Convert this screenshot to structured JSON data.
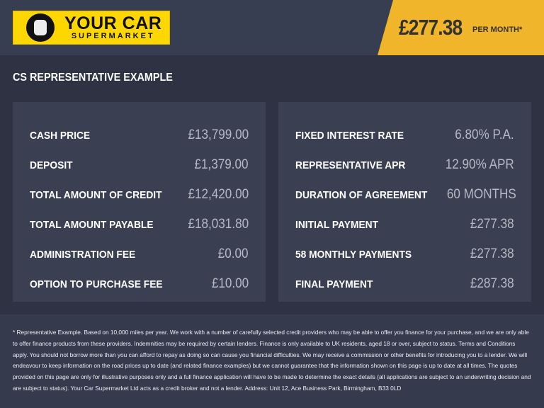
{
  "header": {
    "logo_text": "YOUR CAR SUPERMARKET",
    "logo_line1": "YOUR CAR",
    "logo_line2": "SUPERMARKET",
    "monthly_price": "£277.38",
    "per_month_label": "PER MONTH*",
    "accent_color": "#f0b52a"
  },
  "section_title": "CS REPRESENTATIVE EXAMPLE",
  "left_panel": [
    {
      "label": "CASH PRICE",
      "value": "£13,799.00"
    },
    {
      "label": "DEPOSIT",
      "value": "£1,379.00"
    },
    {
      "label": "TOTAL AMOUNT OF CREDIT",
      "value": "£12,420.00"
    },
    {
      "label": "TOTAL AMOUNT PAYABLE",
      "value": "£18,031.80"
    },
    {
      "label": "ADMINISTRATION FEE",
      "value": "£0.00"
    },
    {
      "label": "OPTION TO PURCHASE FEE",
      "value": "£10.00"
    }
  ],
  "right_panel": [
    {
      "label": "FIXED INTEREST RATE",
      "value": "6.80% P.A."
    },
    {
      "label": "REPRESENTATIVE APR",
      "value": "12.90% APR"
    },
    {
      "label": "DURATION OF AGREEMENT",
      "value": "60 MONTHS"
    },
    {
      "label": "INITIAL PAYMENT",
      "value": "£277.38"
    },
    {
      "label": "58 MONTHLY PAYMENTS",
      "value": "£277.38"
    },
    {
      "label": "FINAL PAYMENT",
      "value": "£287.38"
    }
  ],
  "footer_text": "* Representative Example. Based on 10,000 miles per year. We work with a number of carefully selected credit providers who may be able to offer you finance for your purchase, and we are only able to offer finance products from these providers. Indemnities may be required by certain lenders. Finance is only available to UK residents, aged 18 or over, subject to status. Terms and Conditions apply. You should not borrow more than you can afford to repay as doing so can cause you financial difficulties. We may receive a commission or other benefits for introducing you to a lender. We will endeavour to keep information on the road prices up to date (and related finance examples) but we cannot guarantee that the information shown on this page is up to date at all times. The quotes provided on this page are only for illustrative purposes only and a full finance application will have to be made to determine the exact details (all applications are subject to an underwriting decision and are subject to status). Your Car Supermarket Ltd acts as a credit broker and not a lender. Address: Unit 12, Ace Business Park, Birmingham, B33 0LD"
}
